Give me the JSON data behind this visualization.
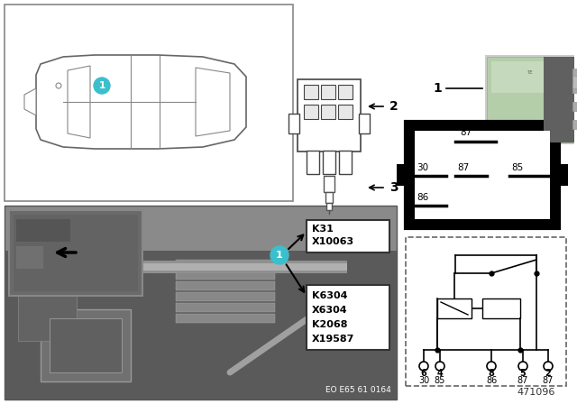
{
  "bg_color": "#ffffff",
  "relay_green_color": "#b5ceaa",
  "relay_dark_color": "#7a7a7a",
  "photo_bg": "#8a8a8a",
  "photo_dark": "#5a5a5a",
  "photo_mid": "#707070",
  "inset_bg": "#6a6a6a",
  "footer_text": "EO E65 61 0164",
  "part_number": "471096",
  "label_box_1_text": [
    "K31",
    "X10063"
  ],
  "label_box_2_text": [
    "K6304",
    "X6304",
    "K2068",
    "X19587"
  ],
  "pin_diagram_labels": [
    "87",
    "30",
    "87",
    "85",
    "86"
  ],
  "circuit_top_labels": [
    "6",
    "4",
    "8",
    "5",
    "2"
  ],
  "circuit_bot_labels": [
    "30",
    "85",
    "86",
    "87",
    "87"
  ],
  "item2_label": "2",
  "item3_label": "3",
  "item1_label": "1",
  "teal_color": "#3bbfcc"
}
